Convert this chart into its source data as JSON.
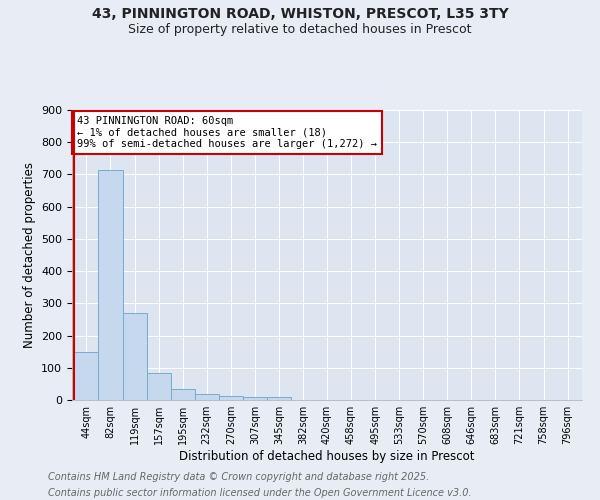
{
  "title1": "43, PINNINGTON ROAD, WHISTON, PRESCOT, L35 3TY",
  "title2": "Size of property relative to detached houses in Prescot",
  "xlabel": "Distribution of detached houses by size in Prescot",
  "ylabel": "Number of detached properties",
  "footnote1": "Contains HM Land Registry data © Crown copyright and database right 2025.",
  "footnote2": "Contains public sector information licensed under the Open Government Licence v3.0.",
  "bin_labels": [
    "44sqm",
    "82sqm",
    "119sqm",
    "157sqm",
    "195sqm",
    "232sqm",
    "270sqm",
    "307sqm",
    "345sqm",
    "382sqm",
    "420sqm",
    "458sqm",
    "495sqm",
    "533sqm",
    "570sqm",
    "608sqm",
    "646sqm",
    "683sqm",
    "721sqm",
    "758sqm",
    "796sqm"
  ],
  "bar_values": [
    148,
    715,
    270,
    85,
    35,
    20,
    12,
    10,
    8,
    0,
    0,
    0,
    0,
    0,
    0,
    0,
    0,
    0,
    0,
    0,
    0
  ],
  "bar_color": "#c5d8ee",
  "bar_edge_color": "#7aabcc",
  "annotation_text": "43 PINNINGTON ROAD: 60sqm\n← 1% of detached houses are smaller (18)\n99% of semi-detached houses are larger (1,272) →",
  "annotation_box_facecolor": "#ffffff",
  "annotation_box_edgecolor": "#cc0000",
  "vline_color": "#cc0000",
  "vline_x_index": -0.5,
  "ylim": [
    0,
    900
  ],
  "yticks": [
    0,
    100,
    200,
    300,
    400,
    500,
    600,
    700,
    800,
    900
  ],
  "bg_color": "#e8edf5",
  "plot_bg_color": "#dce5f0",
  "grid_color": "#ffffff",
  "title_fontsize": 10,
  "subtitle_fontsize": 9,
  "footnote_fontsize": 7,
  "footnote_color": "#666666"
}
